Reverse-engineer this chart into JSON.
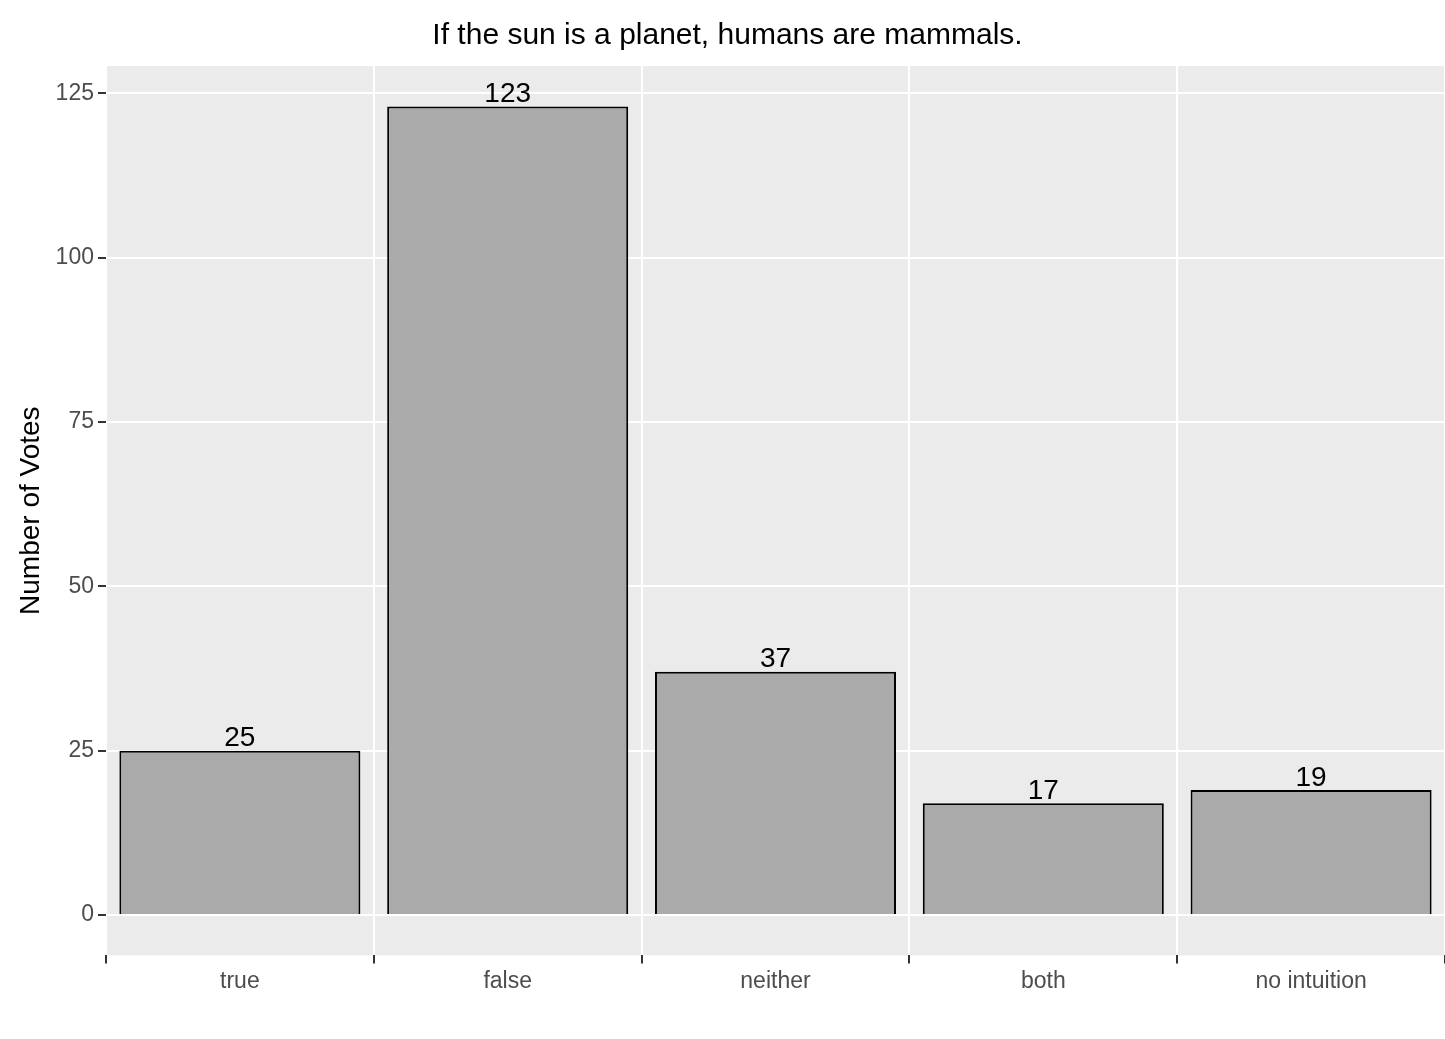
{
  "chart_data": {
    "type": "bar",
    "title": "If the sun is a planet, humans are mammals.",
    "ylabel": "Number of Votes",
    "categories": [
      "true",
      "false",
      "neither",
      "both",
      "no intuition"
    ],
    "values": [
      25,
      123,
      37,
      17,
      19
    ],
    "color": "#aaaaaa",
    "ylim": [
      -6.15,
      129.15
    ],
    "yticks": [
      0,
      25,
      50,
      75,
      100,
      125
    ],
    "grid": true,
    "data_labels": true
  }
}
